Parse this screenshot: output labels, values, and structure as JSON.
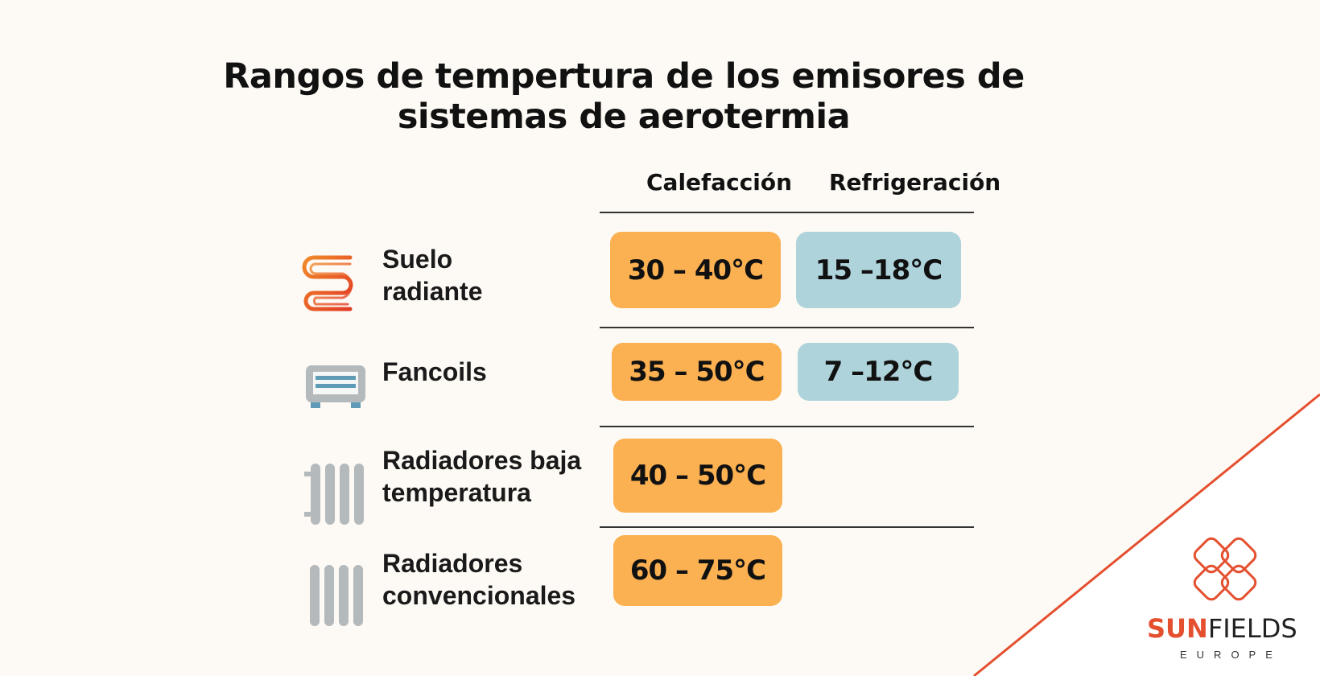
{
  "title": {
    "line1": "Rangos de tempertura de los emisores de",
    "line2": "sistemas de aerotermia"
  },
  "columns": {
    "heating": "Calefacción",
    "cooling": "Refrigeración"
  },
  "rows": [
    {
      "label1": "Suelo",
      "label2": "radiante",
      "icon": "underfloor-heating-icon",
      "heating": "30 – 40°C",
      "cooling": "15 –18°C"
    },
    {
      "label1": "Fancoils",
      "label2": "",
      "icon": "fancoil-icon",
      "heating": "35 – 50°C",
      "cooling": "7 –12°C"
    },
    {
      "label1": "Radiadores baja",
      "label2": "temperatura",
      "icon": "low-temp-radiator-icon",
      "heating": "40 – 50°C",
      "cooling": ""
    },
    {
      "label1": "Radiadores",
      "label2": "convencionales",
      "icon": "radiator-icon",
      "heating": "60 – 75°C",
      "cooling": ""
    }
  ],
  "colors": {
    "heating": "#fbb152",
    "cooling": "#aed3db",
    "brand": "#e4502f",
    "background": "#fdfaf5"
  },
  "logo": {
    "part1": "SUN",
    "part2": "FIELDS",
    "sub": "EUROPE"
  }
}
